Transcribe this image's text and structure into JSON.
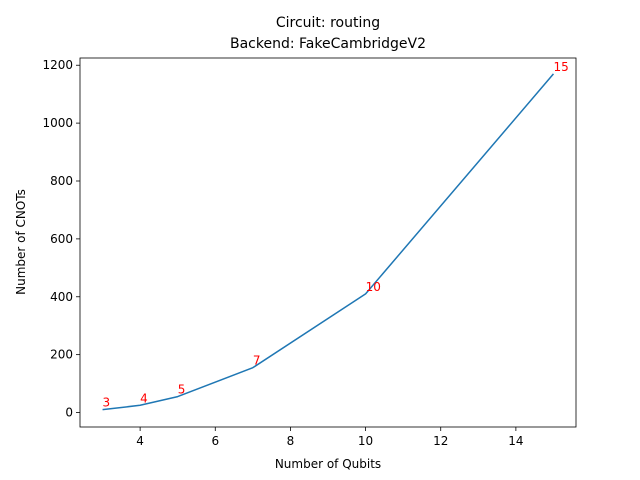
{
  "chart_data": {
    "type": "line",
    "title": "Circuit: routing",
    "subtitle": "Backend: FakeCambridgeV2",
    "xlabel": "Number of Qubits",
    "ylabel": "Number of CNOTs",
    "xlim": [
      2.4,
      15.6
    ],
    "ylim": [
      -50,
      1225
    ],
    "xticks": [
      4,
      6,
      8,
      10,
      12,
      14
    ],
    "yticks": [
      0,
      200,
      400,
      600,
      800,
      1000,
      1200
    ],
    "grid": false,
    "series": [
      {
        "x": [
          3,
          4,
          5,
          7,
          10,
          15
        ],
        "y": [
          10,
          25,
          55,
          155,
          410,
          1170
        ],
        "color": "#1f77b4"
      }
    ],
    "annotations": [
      {
        "text": "3",
        "x": 3,
        "y": 10
      },
      {
        "text": "4",
        "x": 4,
        "y": 25
      },
      {
        "text": "5",
        "x": 5,
        "y": 55
      },
      {
        "text": "7",
        "x": 7,
        "y": 155
      },
      {
        "text": "10",
        "x": 10,
        "y": 410
      },
      {
        "text": "15",
        "x": 15,
        "y": 1170
      }
    ],
    "annotation_color": "#ff0000"
  }
}
